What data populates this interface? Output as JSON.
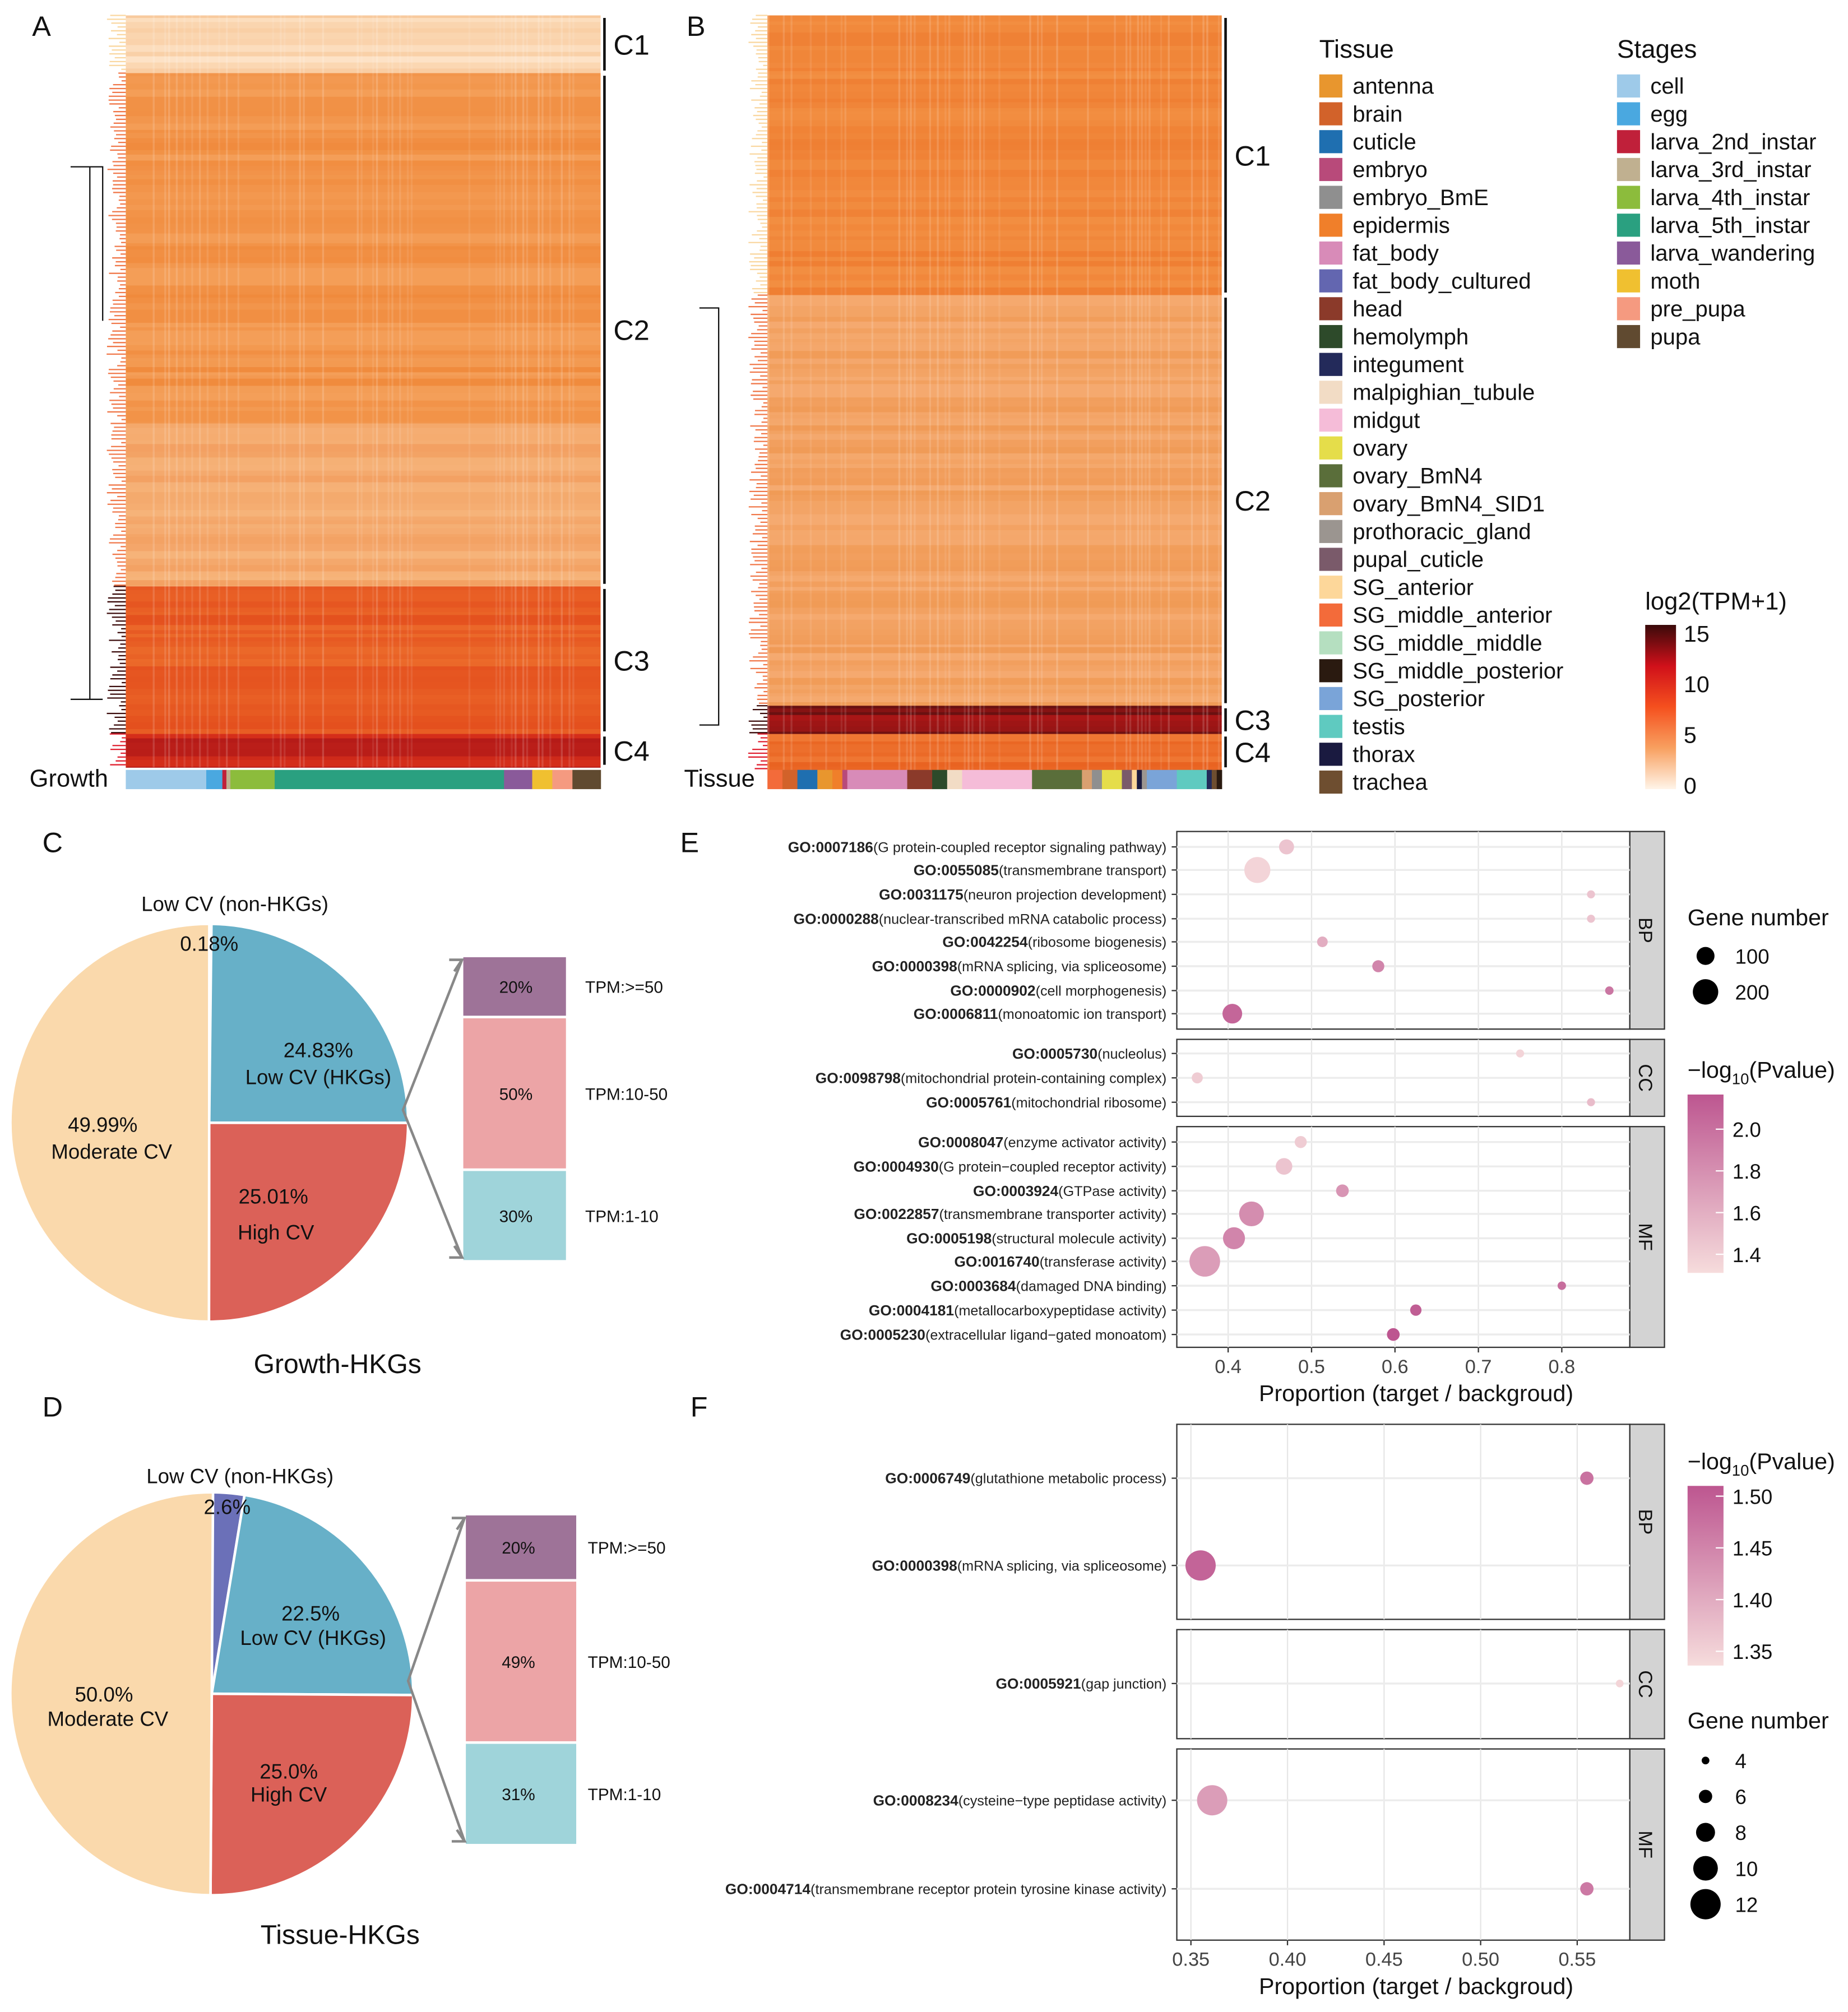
{
  "panels": {
    "A": "A",
    "B": "B",
    "C": "C",
    "D": "D",
    "E": "E",
    "F": "F"
  },
  "heatmap_a": {
    "annotation_label": "Growth",
    "clusters": [
      "C1",
      "C2",
      "C3",
      "C4"
    ]
  },
  "heatmap_b": {
    "annotation_label": "Tissue",
    "clusters": [
      "C1",
      "C2",
      "C3",
      "C4"
    ]
  },
  "legend_tissue": {
    "title": "Tissue",
    "items": [
      {
        "label": "antenna",
        "color": "#e8962e"
      },
      {
        "label": "brain",
        "color": "#d2622a"
      },
      {
        "label": "cuticle",
        "color": "#1f6fb0"
      },
      {
        "label": "embryo",
        "color": "#b84a7a"
      },
      {
        "label": "embryo_BmE",
        "color": "#8f8f8f"
      },
      {
        "label": "epidermis",
        "color": "#f07f2a"
      },
      {
        "label": "fat_body",
        "color": "#d88bb8"
      },
      {
        "label": "fat_body_cultured",
        "color": "#6366b0"
      },
      {
        "label": "head",
        "color": "#8b3a2a"
      },
      {
        "label": "hemolymph",
        "color": "#2d4a2a"
      },
      {
        "label": "integument",
        "color": "#232a5a"
      },
      {
        "label": "malpighian_tubule",
        "color": "#f2dcc5"
      },
      {
        "label": "midgut",
        "color": "#f5bcd8"
      },
      {
        "label": "ovary",
        "color": "#e5dd4a"
      },
      {
        "label": "ovary_BmN4",
        "color": "#5a6e3a"
      },
      {
        "label": "ovary_BmN4_SID1",
        "color": "#d9a070"
      },
      {
        "label": "prothoracic_gland",
        "color": "#9b9590"
      },
      {
        "label": "pupal_cuticle",
        "color": "#7a5a6a"
      },
      {
        "label": "SG_anterior",
        "color": "#fdd79a"
      },
      {
        "label": "SG_middle_anterior",
        "color": "#f36b3a"
      },
      {
        "label": "SG_middle_middle",
        "color": "#b5dfc0"
      },
      {
        "label": "SG_middle_posterior",
        "color": "#2a1a10"
      },
      {
        "label": "SG_posterior",
        "color": "#7aa4d8"
      },
      {
        "label": "testis",
        "color": "#5fcac0"
      },
      {
        "label": "thorax",
        "color": "#1a1a40"
      },
      {
        "label": "trachea",
        "color": "#6e4e30"
      }
    ]
  },
  "legend_stages": {
    "title": "Stages",
    "items": [
      {
        "label": "cell",
        "color": "#9ecae9"
      },
      {
        "label": "egg",
        "color": "#4aa8e0"
      },
      {
        "label": "larva_2nd_instar",
        "color": "#c0203a"
      },
      {
        "label": "larva_3rd_instar",
        "color": "#c0b090"
      },
      {
        "label": "larva_4th_instar",
        "color": "#8cbc3c"
      },
      {
        "label": "larva_5th_instar",
        "color": "#2aa080"
      },
      {
        "label": "larva_wandering",
        "color": "#8a5a9a"
      },
      {
        "label": "moth",
        "color": "#f0c030"
      },
      {
        "label": "pre_pupa",
        "color": "#f59a80"
      },
      {
        "label": "pupa",
        "color": "#604a30"
      }
    ]
  },
  "heat_colorbar": {
    "title": "log2(TPM+1)",
    "ticks": [
      "15",
      "10",
      "5",
      "0"
    ],
    "colors": [
      "#3a0a0a",
      "#d0101a",
      "#f5501e",
      "#f8a060",
      "#fff4e8"
    ]
  },
  "growth_bar": [
    [
      "cell",
      20
    ],
    [
      "egg",
      4
    ],
    [
      "larva_2nd_instar",
      1
    ],
    [
      "larva_3rd_instar",
      1
    ],
    [
      "larva_4th_instar",
      11
    ],
    [
      "larva_5th_instar",
      57
    ],
    [
      "larva_wandering",
      7
    ],
    [
      "moth",
      5
    ],
    [
      "pre_pupa",
      5
    ],
    [
      "pupa",
      7
    ]
  ],
  "tissue_bar": [
    [
      "SG_middle_anterior",
      3
    ],
    [
      "brain",
      3
    ],
    [
      "cuticle",
      4
    ],
    [
      "antenna",
      3
    ],
    [
      "epidermis",
      2
    ],
    [
      "embryo",
      1
    ],
    [
      "fat_body",
      12
    ],
    [
      "head",
      5
    ],
    [
      "hemolymph",
      3
    ],
    [
      "malpighian_tubule",
      3
    ],
    [
      "midgut",
      14
    ],
    [
      "ovary_BmN4",
      10
    ],
    [
      "ovary_BmN4_SID1",
      2
    ],
    [
      "embryo_BmE",
      2
    ],
    [
      "ovary",
      4
    ],
    [
      "pupal_cuticle",
      2
    ],
    [
      "SG_anterior",
      1
    ],
    [
      "thorax",
      1
    ],
    [
      "prothoracic_gland",
      1
    ],
    [
      "SG_posterior",
      6
    ],
    [
      "testis",
      6
    ],
    [
      "integument",
      1
    ],
    [
      "trachea",
      1
    ],
    [
      "SG_middle_posterior",
      1
    ]
  ],
  "chart_data": [
    {
      "type": "pie",
      "title": "Growth-HKGs",
      "slices": [
        {
          "label": "Low CV (HKGs)",
          "value": 24.83,
          "text": "24.83%",
          "color": "#67b0c8"
        },
        {
          "label": "High CV",
          "value": 25.01,
          "text": "25.01%",
          "color": "#db6158"
        },
        {
          "label": "Moderate CV",
          "value": 49.99,
          "text": "49.99%",
          "color": "#fad9ac"
        },
        {
          "label": "Low CV (non-HKGs)",
          "value": 0.18,
          "text": "0.18%",
          "color": "#6b70b8"
        }
      ],
      "breakdown": [
        {
          "label": "TPM:>=50",
          "value": 20,
          "text": "20%",
          "color": "#9e7398"
        },
        {
          "label": "TPM:10-50",
          "value": 50,
          "text": "50%",
          "color": "#eca4a6"
        },
        {
          "label": "TPM:1-10",
          "value": 30,
          "text": "30%",
          "color": "#9fd4da"
        }
      ]
    },
    {
      "type": "pie",
      "title": "Tissue-HKGs",
      "slices": [
        {
          "label": "Low CV (HKGs)",
          "value": 22.5,
          "text": "22.5%",
          "color": "#67b0c8"
        },
        {
          "label": "High CV",
          "value": 25.0,
          "text": "25.0%",
          "color": "#db6158"
        },
        {
          "label": "Moderate CV",
          "value": 50.0,
          "text": "50.0%",
          "color": "#fad9ac"
        },
        {
          "label": "Low CV (non-HKGs)",
          "value": 2.6,
          "text": "2.6%",
          "color": "#6b70b8"
        }
      ],
      "breakdown": [
        {
          "label": "TPM:>=50",
          "value": 20,
          "text": "20%",
          "color": "#9e7398"
        },
        {
          "label": "TPM:10-50",
          "value": 49,
          "text": "49%",
          "color": "#eca4a6"
        },
        {
          "label": "TPM:1-10",
          "value": 31,
          "text": "31%",
          "color": "#9fd4da"
        }
      ]
    },
    {
      "type": "scatter",
      "xlabel": "Proportion (target / backgroud)",
      "xlim": [
        0.35,
        0.88
      ],
      "xticks": [
        "0.4",
        "0.5",
        "0.6",
        "0.7",
        "0.8"
      ],
      "size_legend": {
        "title": "Gene number",
        "values": [
          100,
          200
        ]
      },
      "color_legend": {
        "title": "−log",
        "sub": "10",
        "suffix": "(Pvalue)",
        "range": [
          1.3,
          2.15
        ],
        "ticks": [
          "2.0",
          "1.8",
          "1.6",
          "1.4"
        ]
      },
      "facets": [
        {
          "name": "BP",
          "terms": [
            {
              "id": "GO:0007186",
              "desc": "(G protein-coupled receptor signaling pathway)",
              "x": 0.47,
              "p": 1.45,
              "n": 70
            },
            {
              "id": "GO:0055085",
              "desc": "(transmembrane transport)",
              "x": 0.435,
              "p": 1.35,
              "n": 210
            },
            {
              "id": "GO:0031175",
              "desc": "(neuron projection development)",
              "x": 0.835,
              "p": 1.45,
              "n": 20
            },
            {
              "id": "GO:0000288",
              "desc": "(nuclear-transcribed mRNA catabolic process)",
              "x": 0.835,
              "p": 1.45,
              "n": 20
            },
            {
              "id": "GO:0042254",
              "desc": "(ribosome biogenesis)",
              "x": 0.513,
              "p": 1.6,
              "n": 35
            },
            {
              "id": "GO:0000398",
              "desc": "(mRNA splicing, via spliceosome)",
              "x": 0.58,
              "p": 1.85,
              "n": 45
            },
            {
              "id": "GO:0000902",
              "desc": "(cell morphogenesis)",
              "x": 0.857,
              "p": 1.95,
              "n": 22
            },
            {
              "id": "GO:0006811",
              "desc": "(monoatomic ion transport)",
              "x": 0.405,
              "p": 2.05,
              "n": 120
            }
          ]
        },
        {
          "name": "CC",
          "terms": [
            {
              "id": "GO:0005730",
              "desc": "(nucleolus)",
              "x": 0.75,
              "p": 1.35,
              "n": 20
            },
            {
              "id": "GO:0098798",
              "desc": "(mitochondrial protein-containing complex)",
              "x": 0.363,
              "p": 1.4,
              "n": 38
            },
            {
              "id": "GO:0005761",
              "desc": "(mitochondrial ribosome)",
              "x": 0.835,
              "p": 1.5,
              "n": 20
            }
          ]
        },
        {
          "name": "MF",
          "terms": [
            {
              "id": "GO:0008047",
              "desc": "(enzyme activator activity)",
              "x": 0.487,
              "p": 1.4,
              "n": 45
            },
            {
              "id": "GO:0004930",
              "desc": "(G protein−coupled receptor activity)",
              "x": 0.467,
              "p": 1.45,
              "n": 85
            },
            {
              "id": "GO:0003924",
              "desc": "(GTPase activity)",
              "x": 0.537,
              "p": 1.75,
              "n": 50
            },
            {
              "id": "GO:0022857",
              "desc": "(transmembrane transporter activity)",
              "x": 0.428,
              "p": 1.8,
              "n": 190
            },
            {
              "id": "GO:0005198",
              "desc": "(structural molecule activity)",
              "x": 0.407,
              "p": 1.85,
              "n": 150
            },
            {
              "id": "GO:0016740",
              "desc": "(transferase activity)",
              "x": 0.372,
              "p": 1.7,
              "n": 290
            },
            {
              "id": "GO:0003684",
              "desc": "(damaged DNA binding)",
              "x": 0.8,
              "p": 2.0,
              "n": 22
            },
            {
              "id": "GO:0004181",
              "desc": "(metallocarboxypeptidase activity)",
              "x": 0.625,
              "p": 2.1,
              "n": 40
            },
            {
              "id": "GO:0005230",
              "desc": "(extracellular ligand−gated monoatom)",
              "x": 0.598,
              "p": 2.15,
              "n": 50
            }
          ]
        }
      ]
    },
    {
      "type": "scatter",
      "xlabel": "Proportion (target / backgroud)",
      "xlim": [
        0.343,
        0.578
      ],
      "xticks": [
        "0.35",
        "0.40",
        "0.45",
        "0.50",
        "0.55"
      ],
      "size_legend": {
        "title": "Gene number",
        "values": [
          4,
          6,
          8,
          10,
          12
        ]
      },
      "color_legend": {
        "title": "−log",
        "sub": "10",
        "suffix": "(Pvalue)",
        "range": [
          1.33,
          1.52
        ],
        "ticks": [
          "1.50",
          "1.45",
          "1.40",
          "1.35"
        ]
      },
      "facets": [
        {
          "name": "BP",
          "terms": [
            {
              "id": "GO:0006749",
              "desc": "(glutathione metabolic process)",
              "x": 0.555,
              "p": 1.48,
              "n": 6
            },
            {
              "id": "GO:0000398",
              "desc": "(mRNA splicing, via spliceosome)",
              "x": 0.355,
              "p": 1.5,
              "n": 12
            }
          ]
        },
        {
          "name": "CC",
          "terms": [
            {
              "id": "GO:0005921",
              "desc": "(gap junction)",
              "x": 0.572,
              "p": 1.34,
              "n": 3
            }
          ]
        },
        {
          "name": "MF",
          "terms": [
            {
              "id": "GO:0008234",
              "desc": "(cysteine−type peptidase activity)",
              "x": 0.361,
              "p": 1.42,
              "n": 12
            },
            {
              "id": "GO:0004714",
              "desc": "(transmembrane receptor protein tyrosine kinase activity)",
              "x": 0.555,
              "p": 1.47,
              "n": 6
            }
          ]
        }
      ]
    }
  ]
}
